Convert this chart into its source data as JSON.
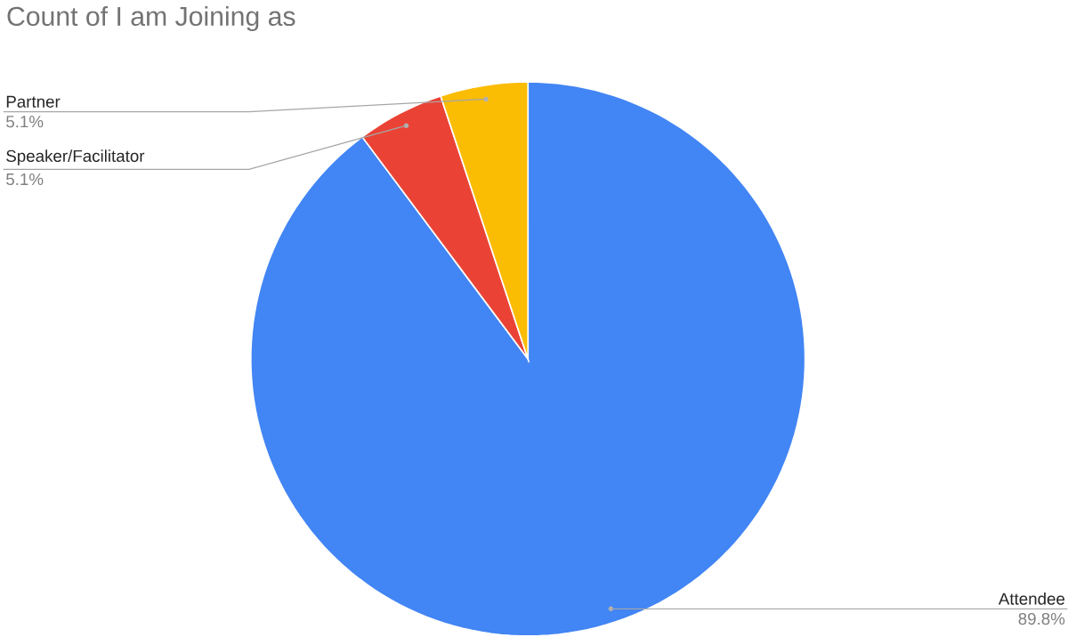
{
  "chart_data": {
    "type": "pie",
    "title": "Count of I am Joining as",
    "categories": [
      "Attendee",
      "Speaker/Facilitator",
      "Partner"
    ],
    "values": [
      89.8,
      5.1,
      5.1
    ],
    "value_labels": [
      "89.8%",
      "5.1%",
      "5.1%"
    ],
    "colors": [
      "#4285f4",
      "#ea4335",
      "#fbbc04"
    ]
  }
}
